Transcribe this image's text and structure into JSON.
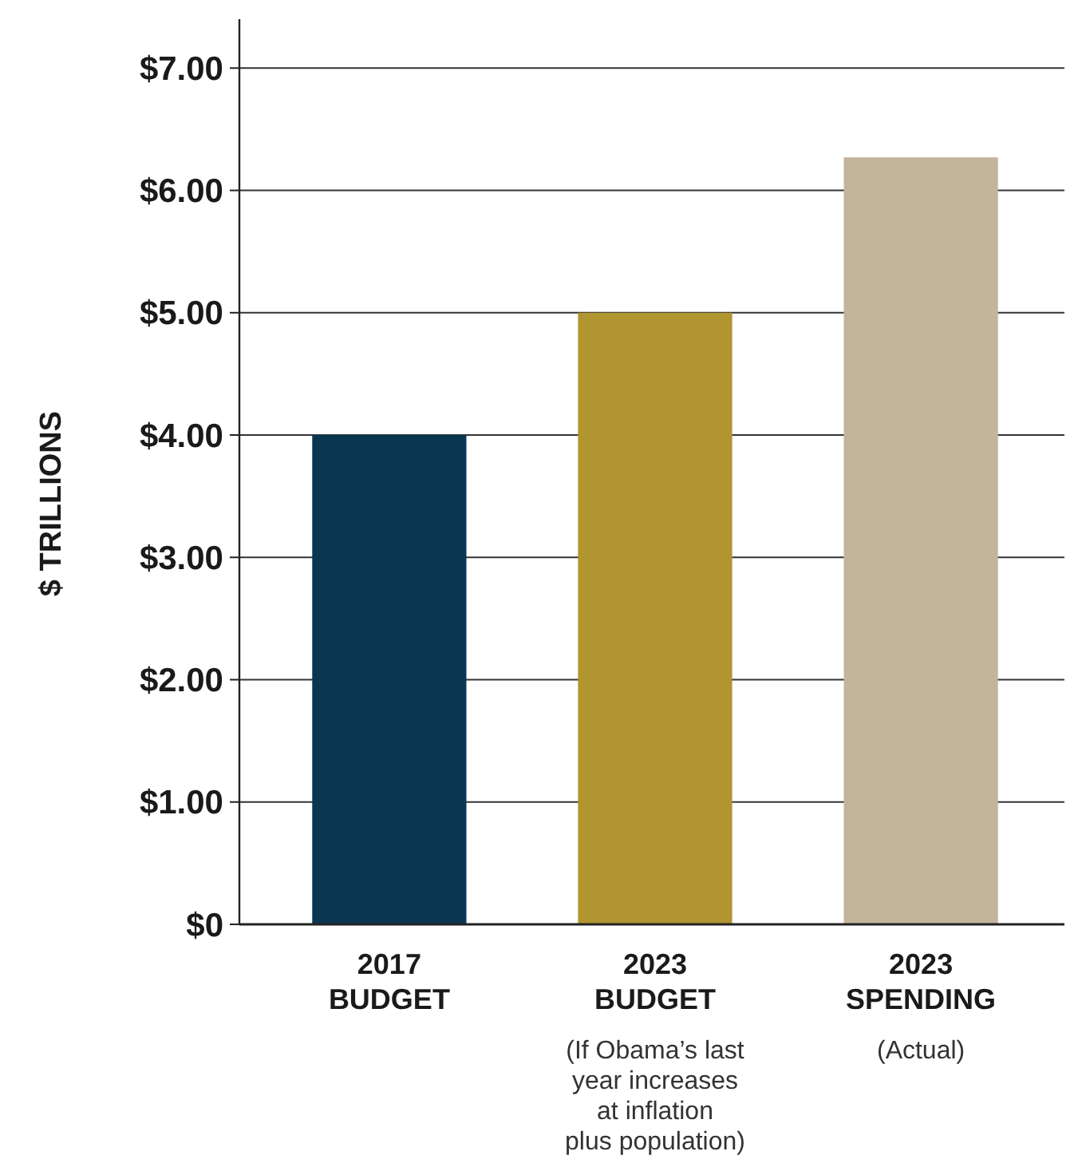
{
  "chart_data": {
    "type": "bar",
    "ylabel": "$ TRILLIONS",
    "categories": [
      "2017 BUDGET",
      "2023 BUDGET",
      "2023 SPENDING"
    ],
    "values": [
      4.0,
      5.0,
      6.27
    ],
    "colors": [
      "#0a3652",
      "#b09530",
      "#c2b59c"
    ],
    "ylim": [
      0,
      7.4
    ],
    "yticks": [
      {
        "value": 0,
        "label": "$0"
      },
      {
        "value": 1,
        "label": "$1.00"
      },
      {
        "value": 2,
        "label": "$2.00"
      },
      {
        "value": 3,
        "label": "$3.00"
      },
      {
        "value": 4,
        "label": "$4.00"
      },
      {
        "value": 5,
        "label": "$5.00"
      },
      {
        "value": 6,
        "label": "$6.00"
      },
      {
        "value": 7,
        "label": "$7.00"
      }
    ],
    "grid": "y",
    "annotations": [
      "(If Obama’s last year increases at inflation plus population)",
      "(Actual)"
    ]
  }
}
